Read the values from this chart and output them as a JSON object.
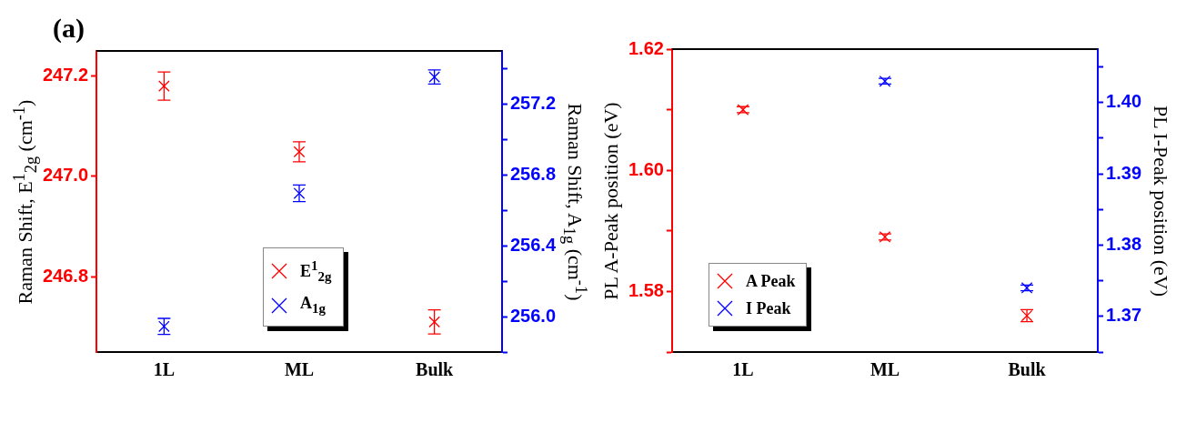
{
  "chart_data": [
    {
      "type": "scatter",
      "title": "(a)",
      "categories": [
        "1L",
        "ML",
        "Bulk"
      ],
      "ylabel": "Raman Shift, E$^{1}$$_{2g}$ (cm$^{-1}$)",
      "y2label": "Raman Shift, A$_{1g}$ (cm$^{-1}$)",
      "series": [
        {
          "name": "E$^{1}$$_{2g}$",
          "color": "#ff0000",
          "values": [
            247.18,
            247.049,
            246.71
          ],
          "errors": [
            0.028,
            0.02,
            0.024
          ],
          "axis": "y"
        },
        {
          "name": "A$_{1g}$",
          "color": "#0000ff",
          "values": [
            255.945,
            256.696,
            257.353
          ],
          "errors": [
            0.045,
            0.047,
            0.04
          ],
          "axis": "y2"
        }
      ],
      "ylim": [
        246.65,
        247.25
      ],
      "yticks": [
        246.8,
        {
          "value": 247,
          "label": "247.0"
        },
        247.2
      ],
      "y2lim": [
        255.8,
        257.5
      ],
      "y2ticks": [
        {
          "value": 255.8,
          "label": null
        },
        {
          "value": 256,
          "label": "256.0"
        },
        {
          "value": 256.2,
          "label": null
        },
        256.4,
        {
          "value": 256.6,
          "label": null
        },
        256.8,
        {
          "value": 257,
          "label": null
        },
        257.2,
        {
          "value": 257.4,
          "label": null
        }
      ],
      "marker": "cross",
      "legend": "bottom"
    },
    {
      "type": "scatter",
      "categories": [
        "1L",
        "ML",
        "Bulk"
      ],
      "ylabel": "PL A-Peak position (eV)",
      "y2label": "PL I-Peak position (eV)",
      "series": [
        {
          "name": "A Peak",
          "color": "#ff0000",
          "values": [
            1.61,
            1.589,
            1.576
          ],
          "errors": [
            0.0005,
            0.0005,
            0.001
          ],
          "axis": "y"
        },
        {
          "name": "I Peak",
          "color": "#0000ff",
          "values": [
            null,
            1.403,
            1.374
          ],
          "errors": [
            null,
            0.0004,
            0.0004
          ],
          "axis": "y2"
        }
      ],
      "ylim": [
        1.57,
        1.62
      ],
      "yticks": [
        {
          "value": 1.57,
          "label": null
        },
        1.58,
        {
          "value": 1.59,
          "label": null
        },
        {
          "value": 1.6,
          "label": "1.60"
        },
        {
          "value": 1.61,
          "label": null
        },
        1.62
      ],
      "y2lim": [
        1.365,
        1.4075
      ],
      "y2ticks": [
        {
          "value": 1.365,
          "label": null
        },
        1.37,
        {
          "value": 1.375,
          "label": null
        },
        1.38,
        {
          "value": 1.385,
          "label": null
        },
        1.39,
        {
          "value": 1.395,
          "label": null
        },
        {
          "value": 1.4,
          "label": "1.40"
        },
        {
          "value": 1.405,
          "label": null
        }
      ],
      "marker": "cross",
      "legend": "bottom left"
    }
  ]
}
